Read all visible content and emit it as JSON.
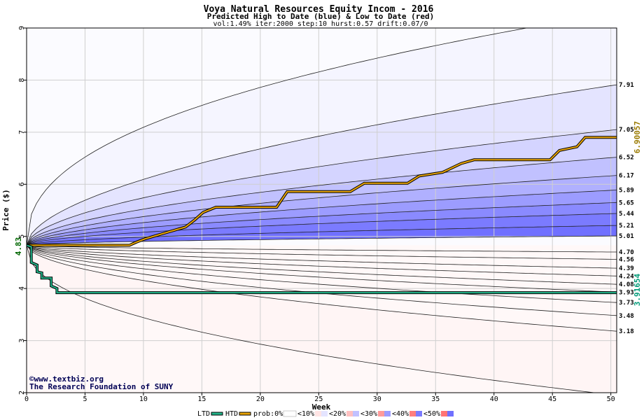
{
  "chart_data": {
    "type": "line",
    "title": "Voya Natural Resources Equity Incom - 2016",
    "subtitle": "Predicted High to Date (blue) &  Low to Date (red)",
    "params": "vol:1.49% iter:2000 step:10 hurst:0.57 drift:0.07/0",
    "xlabel": "Week",
    "ylabel": "Price ($)",
    "xlim": [
      0,
      50.5
    ],
    "ylim": [
      2,
      9
    ],
    "x_ticks": [
      0,
      5,
      10,
      15,
      20,
      25,
      30,
      35,
      40,
      45,
      50
    ],
    "y_ticks": [
      2,
      3,
      4,
      5,
      6,
      7,
      8,
      9
    ],
    "grid": true,
    "start_price": 4.83,
    "start_price_label": "4.83",
    "watermark": [
      "©www.textbiz.org",
      "The Research Foundation of SUNY"
    ],
    "high_bands_end": [
      "7.91",
      "7.05",
      "6.52",
      "6.17",
      "5.89",
      "5.65",
      "5.44",
      "5.21",
      "5.01"
    ],
    "low_bands_end": [
      "4.70",
      "4.56",
      "4.39",
      "4.24",
      "4.08",
      "3.93",
      "3.73",
      "3.48",
      "3.18"
    ],
    "outer_high_band_end": 9.3,
    "outer_low_band_end": 1.95,
    "htd_end_label": "6.90057",
    "ltd_end_label": "3.91654",
    "series": [
      {
        "name": "HTD",
        "color": "#e8a400",
        "x": [
          0,
          8.8,
          9.4,
          9.4,
          10.1,
          10.1,
          11.6,
          11.6,
          13.6,
          13.6,
          14.4,
          14.4,
          15.1,
          15.1,
          16.2,
          16.2,
          21.4,
          21.4,
          22.3,
          22.3,
          27.7,
          27.7,
          28.9,
          28.9,
          32.6,
          32.6,
          33.6,
          33.6,
          35.6,
          35.6,
          37.2,
          37.2,
          38.3,
          38.3,
          44.8,
          44.8,
          45.6,
          45.6,
          47.1,
          47.1,
          47.8,
          47.8,
          50.5
        ],
        "y": [
          4.83,
          4.83,
          4.89,
          4.89,
          4.95,
          4.95,
          5.05,
          5.05,
          5.18,
          5.18,
          5.32,
          5.32,
          5.46,
          5.46,
          5.56,
          5.56,
          5.56,
          5.56,
          5.86,
          5.86,
          5.86,
          5.86,
          6.02,
          6.02,
          6.02,
          6.02,
          6.16,
          6.16,
          6.23,
          6.23,
          6.4,
          6.4,
          6.47,
          6.47,
          6.47,
          6.47,
          6.65,
          6.65,
          6.72,
          6.72,
          6.9,
          6.9,
          6.9
        ]
      },
      {
        "name": "LTD",
        "color": "#22b58a",
        "x": [
          0,
          0.4,
          0.4,
          0.9,
          0.9,
          1.3,
          1.3,
          2.1,
          2.1,
          2.6,
          2.6,
          50.5
        ],
        "y": [
          4.83,
          4.8,
          4.5,
          4.45,
          4.32,
          4.3,
          4.2,
          4.2,
          4.05,
          4.0,
          3.92,
          3.92
        ]
      }
    ],
    "legend": {
      "items": [
        {
          "label": "LTD",
          "color": "#22b58a"
        },
        {
          "label": "HTD",
          "color": "#e8a400"
        },
        {
          "label": "prob:0%",
          "color": "#ffffff"
        },
        {
          "label": "<10%",
          "color": ""
        },
        {
          "label": "<20%",
          "color": ""
        },
        {
          "label": "<30%",
          "color": ""
        },
        {
          "label": "<40%",
          "color": ""
        },
        {
          "label": "<50%",
          "color": ""
        }
      ]
    },
    "band_colors": {
      "high": [
        "#f5f5ff",
        "#e4e4ff",
        "#d4d4ff",
        "#c1c1ff",
        "#b0b0ff",
        "#9c9cff",
        "#8a8aff",
        "#7b7bff",
        "#7070ff",
        "#fbfbff"
      ],
      "low": [
        "#fff5f5",
        "#ffe4e4",
        "#ffd2d2",
        "#ffc0c0",
        "#ffadad",
        "#ff9a9a",
        "#ff8a8a",
        "#ff7e7e",
        "#ff7474",
        "#fff8f8"
      ]
    },
    "accent": {
      "label_htd": "#9a7a00",
      "label_ltd": "#009a78",
      "start_label": "#006600"
    }
  }
}
